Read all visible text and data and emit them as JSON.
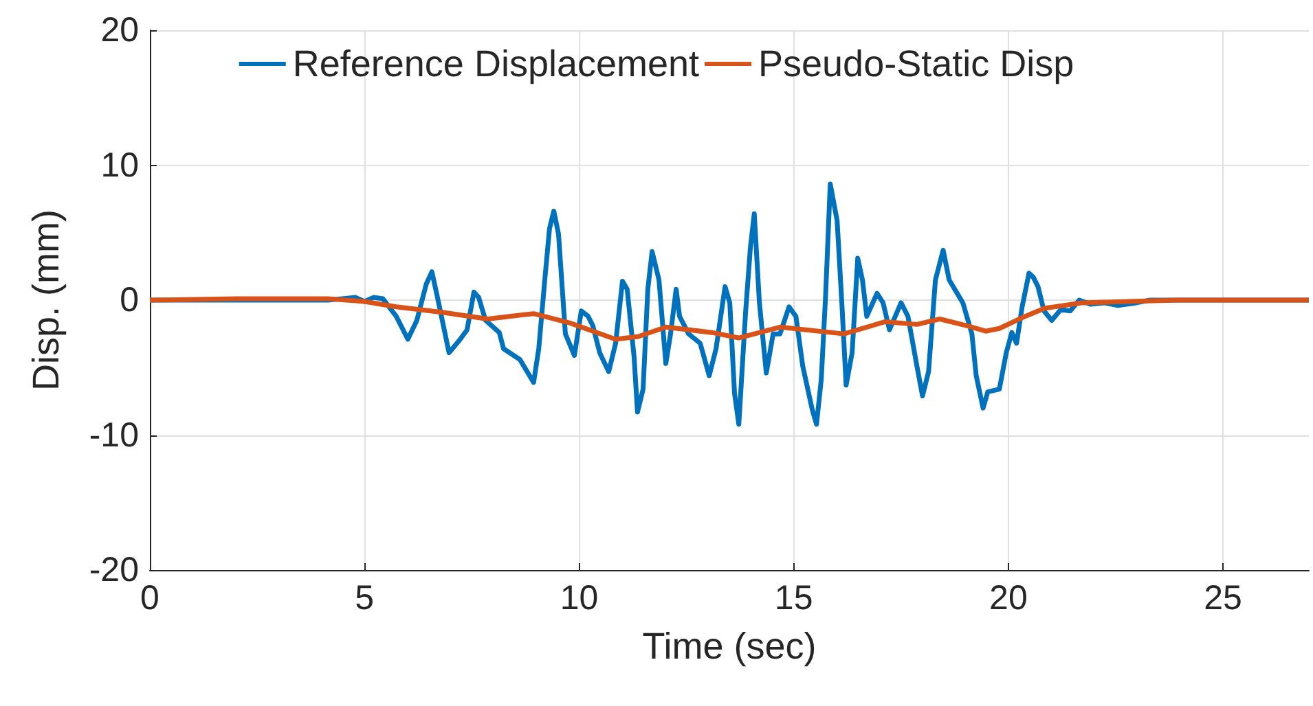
{
  "chart_data": {
    "type": "line",
    "xlabel": "Time (sec)",
    "ylabel": "Disp. (mm)",
    "xlim": [
      0,
      27
    ],
    "xticks": [
      0,
      5,
      10,
      15,
      20,
      25
    ],
    "ylim": [
      -20,
      20
    ],
    "yticks": [
      -20,
      -10,
      0,
      10,
      20
    ],
    "grid": true,
    "legend": "top",
    "marker": "none",
    "line_style": "solid",
    "series": [
      {
        "name": "Reference Displacement",
        "color": "#0072bd",
        "x": [
          0,
          2,
          4.15,
          4.79,
          5.0,
          5.21,
          5.43,
          5.74,
          6.01,
          6.22,
          6.44,
          6.57,
          6.7,
          6.97,
          7.23,
          7.39,
          7.55,
          7.66,
          7.82,
          8.14,
          8.24,
          8.62,
          8.94,
          9.06,
          9.2,
          9.31,
          9.41,
          9.52,
          9.68,
          9.89,
          10.05,
          10.21,
          10.32,
          10.48,
          10.69,
          10.85,
          11.01,
          11.12,
          11.28,
          11.36,
          11.49,
          11.6,
          11.7,
          11.86,
          12.02,
          12.13,
          12.26,
          12.34,
          12.55,
          12.82,
          13.03,
          13.19,
          13.4,
          13.51,
          13.62,
          13.72,
          13.88,
          13.99,
          14.08,
          14.2,
          14.36,
          14.52,
          14.68,
          14.89,
          15.05,
          15.21,
          15.43,
          15.53,
          15.64,
          15.74,
          15.85,
          16.01,
          16.12,
          16.22,
          16.36,
          16.49,
          16.6,
          16.7,
          16.94,
          17.08,
          17.23,
          17.5,
          17.66,
          17.87,
          18.0,
          18.14,
          18.3,
          18.48,
          18.62,
          18.94,
          19.15,
          19.25,
          19.41,
          19.52,
          19.79,
          19.95,
          20.08,
          20.19,
          20.32,
          20.48,
          20.58,
          20.69,
          20.83,
          21.01,
          21.22,
          21.44,
          21.65,
          21.91,
          22.23,
          22.55,
          22.98,
          23.3,
          25,
          27
        ],
        "values": [
          0,
          0,
          0,
          0.2,
          -0.1,
          0.2,
          0.1,
          -1.2,
          -2.9,
          -1.5,
          1.2,
          2.1,
          0.2,
          -3.9,
          -2.9,
          -2.2,
          0.6,
          0.2,
          -1.5,
          -2.4,
          -3.6,
          -4.4,
          -6.1,
          -3.6,
          1.5,
          5.3,
          6.6,
          4.9,
          -2.5,
          -4.1,
          -0.8,
          -1.2,
          -1.9,
          -3.9,
          -5.3,
          -3.2,
          1.4,
          0.8,
          -4.2,
          -8.3,
          -6.6,
          0.8,
          3.6,
          1.5,
          -4.7,
          -2.5,
          0.8,
          -1.2,
          -2.5,
          -3.2,
          -5.6,
          -3.6,
          1.0,
          -0.2,
          -6.9,
          -9.2,
          -0.8,
          3.9,
          6.4,
          -0.2,
          -5.4,
          -2.5,
          -2.5,
          -0.5,
          -1.2,
          -4.9,
          -8.1,
          -9.2,
          -5.9,
          0.2,
          8.6,
          5.9,
          -0.2,
          -6.3,
          -3.9,
          3.1,
          1.5,
          -1.2,
          0.5,
          -0.2,
          -2.2,
          -0.2,
          -1.2,
          -4.9,
          -7.1,
          -5.3,
          1.5,
          3.7,
          1.5,
          -0.2,
          -2.5,
          -5.6,
          -8.0,
          -6.8,
          -6.6,
          -3.9,
          -2.4,
          -3.2,
          -0.5,
          2.0,
          1.7,
          1.0,
          -0.8,
          -1.5,
          -0.7,
          -0.8,
          0,
          -0.3,
          -0.2,
          -0.4,
          -0.2,
          0,
          0,
          0
        ]
      },
      {
        "name": "Pseudo-Static Disp",
        "color": "#d95319",
        "x": [
          0,
          2,
          4.15,
          5.0,
          5.74,
          6.81,
          7.87,
          8.94,
          9.79,
          10.85,
          11.38,
          12.02,
          13.09,
          13.72,
          14.68,
          16.17,
          17.13,
          17.87,
          18.4,
          19.04,
          19.47,
          19.79,
          20.32,
          20.85,
          21.7,
          22.77,
          23.94,
          27
        ],
        "values": [
          0,
          0.1,
          0.1,
          -0.1,
          -0.5,
          -0.9,
          -1.4,
          -1.0,
          -1.7,
          -2.9,
          -2.7,
          -2.0,
          -2.4,
          -2.8,
          -2.0,
          -2.5,
          -1.6,
          -1.8,
          -1.4,
          -1.9,
          -2.3,
          -2.1,
          -1.3,
          -0.6,
          -0.2,
          -0.1,
          0,
          0
        ]
      }
    ]
  }
}
